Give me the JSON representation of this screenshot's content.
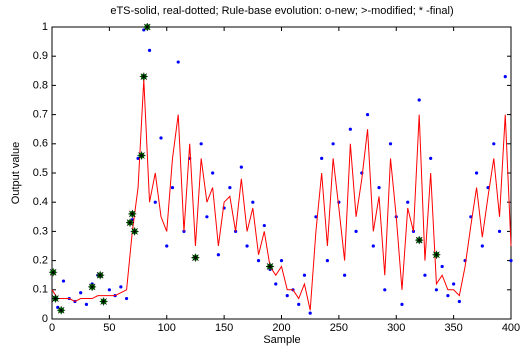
{
  "chart_data": {
    "type": "line",
    "title": "eTS-solid, real-dotted; Rule-base evolution: o-new; >-modified; * -final)",
    "x_label": "Sample",
    "y_label": "Output value",
    "xlim": [
      0,
      400
    ],
    "ylim": [
      0,
      1
    ],
    "xticks": [
      0,
      50,
      100,
      150,
      200,
      250,
      300,
      350,
      400
    ],
    "yticks": [
      0,
      0.1,
      0.2,
      0.3,
      0.4,
      0.5,
      0.6,
      0.7,
      0.8,
      0.9,
      1
    ],
    "series": [
      {
        "style": "dots",
        "color": "#0000ff",
        "x": [
          0,
          5,
          10,
          15,
          20,
          25,
          30,
          35,
          40,
          45,
          50,
          55,
          60,
          65,
          70,
          75,
          80,
          85,
          90,
          95,
          100,
          105,
          110,
          115,
          120,
          125,
          130,
          135,
          140,
          145,
          150,
          155,
          160,
          165,
          170,
          175,
          180,
          185,
          190,
          195,
          200,
          205,
          210,
          215,
          220,
          225,
          230,
          235,
          240,
          245,
          250,
          255,
          260,
          265,
          270,
          275,
          280,
          285,
          290,
          295,
          300,
          305,
          310,
          315,
          320,
          325,
          330,
          335,
          340,
          345,
          350,
          355,
          360,
          365,
          370,
          375,
          380,
          385,
          390,
          395,
          400
        ],
        "values": [
          0.16,
          0.04,
          0.13,
          0.07,
          0.06,
          0.09,
          0.05,
          0.12,
          0.15,
          0.06,
          0.1,
          0.08,
          0.11,
          0.07,
          0.34,
          0.55,
          0.99,
          0.92,
          0.4,
          0.62,
          0.25,
          0.45,
          0.88,
          0.3,
          0.55,
          0.21,
          0.6,
          0.35,
          0.5,
          0.22,
          0.38,
          0.45,
          0.3,
          0.52,
          0.25,
          0.4,
          0.2,
          0.32,
          0.17,
          0.12,
          0.2,
          0.08,
          0.1,
          0.05,
          0.15,
          0.02,
          0.35,
          0.55,
          0.2,
          0.6,
          0.4,
          0.15,
          0.65,
          0.3,
          0.5,
          0.7,
          0.25,
          0.45,
          0.1,
          0.6,
          0.35,
          0.05,
          0.4,
          0.3,
          0.75,
          0.15,
          0.55,
          0.1,
          0.18,
          0.08,
          0.12,
          0.06,
          0.2,
          0.35,
          0.5,
          0.25,
          0.45,
          0.6,
          0.3,
          0.83,
          0.2
        ]
      },
      {
        "style": "line",
        "color": "#ff0000",
        "x": [
          0,
          5,
          10,
          15,
          20,
          25,
          30,
          35,
          40,
          45,
          50,
          55,
          60,
          65,
          70,
          75,
          80,
          85,
          90,
          95,
          100,
          105,
          110,
          115,
          120,
          125,
          130,
          135,
          140,
          145,
          150,
          155,
          160,
          165,
          170,
          175,
          180,
          185,
          190,
          195,
          200,
          205,
          210,
          215,
          220,
          225,
          230,
          235,
          240,
          245,
          250,
          255,
          260,
          265,
          270,
          275,
          280,
          285,
          290,
          295,
          300,
          305,
          310,
          315,
          320,
          325,
          330,
          335,
          340,
          345,
          350,
          355,
          360,
          365,
          370,
          375,
          380,
          385,
          390,
          395,
          400
        ],
        "values": [
          0.1,
          0.07,
          0.07,
          0.07,
          0.06,
          0.07,
          0.07,
          0.07,
          0.08,
          0.08,
          0.08,
          0.08,
          0.09,
          0.1,
          0.3,
          0.45,
          0.82,
          0.4,
          0.5,
          0.35,
          0.3,
          0.55,
          0.7,
          0.3,
          0.6,
          0.25,
          0.55,
          0.4,
          0.45,
          0.25,
          0.4,
          0.42,
          0.3,
          0.48,
          0.3,
          0.38,
          0.22,
          0.3,
          0.18,
          0.15,
          0.18,
          0.1,
          0.1,
          0.07,
          0.12,
          0.03,
          0.3,
          0.5,
          0.25,
          0.55,
          0.38,
          0.2,
          0.6,
          0.35,
          0.48,
          0.65,
          0.3,
          0.42,
          0.15,
          0.55,
          0.35,
          0.1,
          0.38,
          0.3,
          0.7,
          0.2,
          0.5,
          0.12,
          0.15,
          0.1,
          0.1,
          0.08,
          0.18,
          0.32,
          0.45,
          0.28,
          0.42,
          0.55,
          0.35,
          0.7,
          0.25
        ]
      },
      {
        "style": "stars",
        "color": "#00a000",
        "x": [
          1,
          3,
          8,
          35,
          42,
          45,
          68,
          70,
          72,
          78,
          80,
          83,
          125,
          190,
          320,
          335
        ],
        "values": [
          0.16,
          0.07,
          0.03,
          0.11,
          0.15,
          0.06,
          0.33,
          0.36,
          0.3,
          0.56,
          0.83,
          1.0,
          0.21,
          0.18,
          0.27,
          0.22
        ]
      }
    ]
  }
}
